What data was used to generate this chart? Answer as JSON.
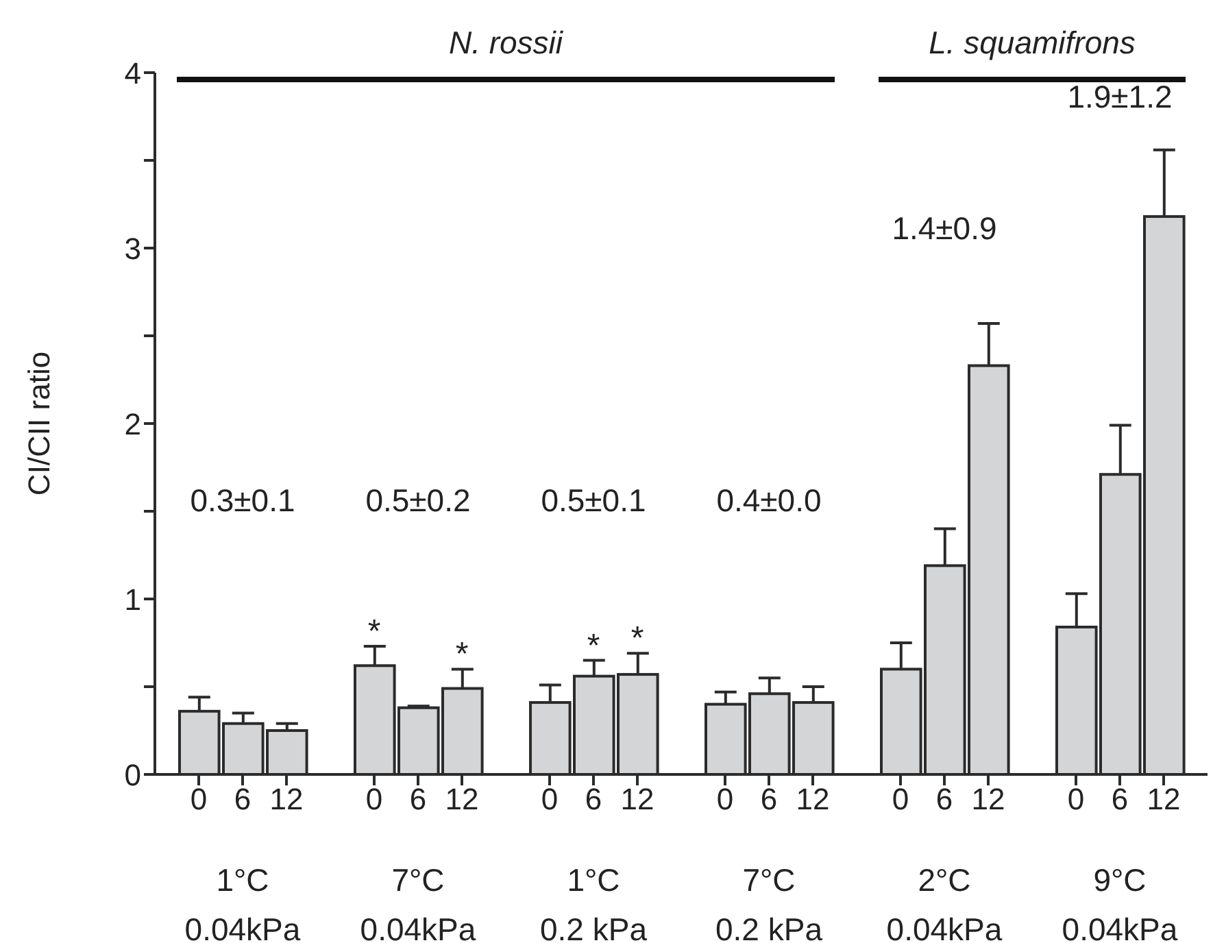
{
  "chart_data": {
    "type": "bar",
    "ylabel": "CI/CII ratio",
    "categories": [
      "0",
      "6",
      "12",
      "0",
      "6",
      "12",
      "0",
      "6",
      "12",
      "0",
      "6",
      "12",
      "0",
      "6",
      "12",
      "0",
      "6",
      "12"
    ],
    "values": [
      0.36,
      0.29,
      0.25,
      0.62,
      0.38,
      0.49,
      0.41,
      0.56,
      0.57,
      0.4,
      0.46,
      0.41,
      0.6,
      1.19,
      2.33,
      0.84,
      1.71,
      3.18
    ],
    "errors": [
      [
        0.36,
        0.44
      ],
      [
        0.29,
        0.35
      ],
      [
        0.25,
        0.29
      ],
      [
        0.62,
        0.73
      ],
      [
        0.38,
        0.39
      ],
      [
        0.49,
        0.6
      ],
      [
        0.41,
        0.51
      ],
      [
        0.56,
        0.65
      ],
      [
        0.57,
        0.69
      ],
      [
        0.4,
        0.47
      ],
      [
        0.46,
        0.55
      ],
      [
        0.41,
        0.5
      ],
      [
        0.6,
        0.75
      ],
      [
        1.19,
        1.4
      ],
      [
        2.33,
        2.57
      ],
      [
        0.84,
        1.03
      ],
      [
        1.71,
        1.99
      ],
      [
        3.18,
        3.56
      ]
    ],
    "color": "#d4d5d7",
    "ylim": [
      0,
      4
    ],
    "yticks": [
      0,
      {
        "value": 0.5,
        "label": null
      },
      1,
      {
        "value": 1.5,
        "label": null
      },
      2,
      {
        "value": 2.5,
        "label": null
      },
      3,
      {
        "value": 3.5,
        "label": null
      },
      4
    ],
    "annotations": [
      "1°C",
      "0.04kPa",
      "7°C",
      "0.04kPa",
      "1°C",
      "0.2 kPa",
      "7°C",
      "0.2 kPa",
      "2°C",
      "0.04kPa",
      "9°C",
      "0.04kPa",
      "0.3±0.1",
      "0.5±0.2",
      "0.5±0.1",
      "0.4±0.0",
      "1.4±0.9",
      "1.9±1.2",
      "N. rossii",
      "L. squamifrons",
      "*",
      "*",
      "*",
      "*"
    ],
    "grid": false
  }
}
